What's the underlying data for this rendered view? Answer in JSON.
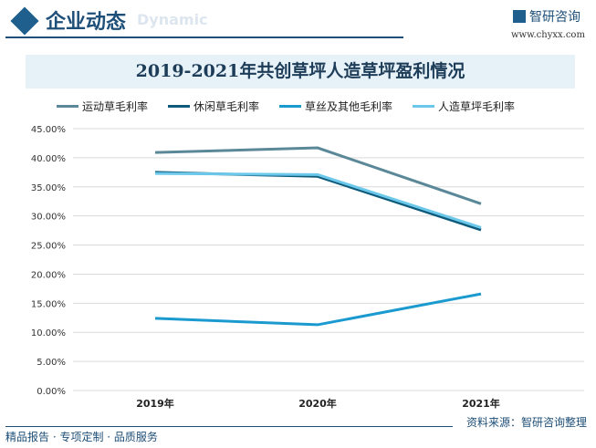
{
  "header": {
    "title": "企业动态",
    "subtitle_en": "Dynamic",
    "brand": "智研咨询",
    "url": "www.chyxx.com"
  },
  "footer": {
    "left": "精品报告 · 专项定制 · 品质服务",
    "source": "资料来源：智研咨询整理"
  },
  "chart_data": {
    "type": "line",
    "title": "2019-2021年共创草坪人造草坪盈利情况",
    "categories": [
      "2019年",
      "2020年",
      "2021年"
    ],
    "ylim": [
      0,
      45
    ],
    "yticks": [
      "0.00%",
      "5.00%",
      "10.00%",
      "15.00%",
      "20.00%",
      "25.00%",
      "30.00%",
      "35.00%",
      "40.00%",
      "45.00%"
    ],
    "legend_position": "top",
    "grid": true,
    "series": [
      {
        "name": "运动草毛利率",
        "color": "#5b8899",
        "values": [
          40.9,
          41.7,
          32.1
        ]
      },
      {
        "name": "休闲草毛利率",
        "color": "#0d5a7a",
        "values": [
          37.5,
          36.8,
          27.6
        ]
      },
      {
        "name": "草丝及其他毛利率",
        "color": "#1b9ad0",
        "values": [
          12.4,
          11.3,
          16.6
        ]
      },
      {
        "name": "人造草坪毛利率",
        "color": "#6cc8ea",
        "values": [
          37.3,
          37.1,
          28.0
        ]
      }
    ]
  }
}
